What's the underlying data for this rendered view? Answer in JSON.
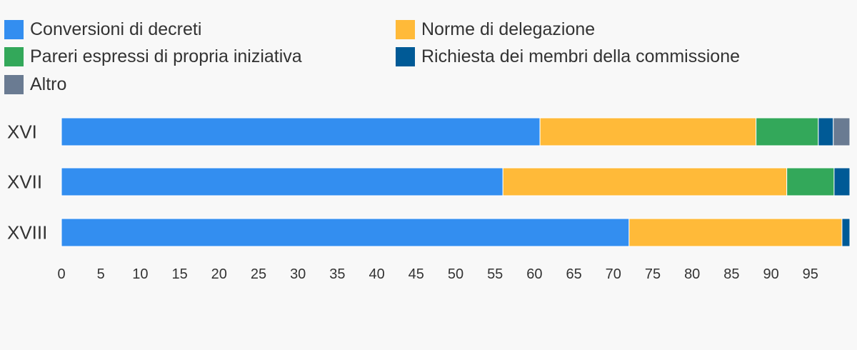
{
  "chart_data": {
    "type": "bar",
    "orientation": "horizontal",
    "stacked": true,
    "title": "",
    "xlabel": "",
    "ylabel": "",
    "categories": [
      "XVI",
      "XVII",
      "XVIII"
    ],
    "series": [
      {
        "name": "Conversioni di decreti",
        "color": "#338ef0",
        "values": [
          60.7,
          56.0,
          72.0
        ]
      },
      {
        "name": "Norme di delegazione",
        "color": "#ffba39",
        "values": [
          27.4,
          36.0,
          27.0
        ]
      },
      {
        "name": "Pareri espressi di propria iniziativa",
        "color": "#33a85a",
        "values": [
          7.9,
          6.0,
          0
        ]
      },
      {
        "name": "Richiesta dei membri della commissione",
        "color": "#005a96",
        "values": [
          1.9,
          2.0,
          1.0
        ]
      },
      {
        "name": "Altro",
        "color": "#6a7b92",
        "values": [
          2.1,
          0,
          0
        ]
      }
    ],
    "xlim": [
      0,
      100
    ],
    "xticks": [
      "0",
      "5",
      "10",
      "15",
      "20",
      "25",
      "30",
      "35",
      "40",
      "45",
      "50",
      "55",
      "60",
      "65",
      "70",
      "75",
      "80",
      "85",
      "90",
      "95"
    ],
    "grid": false,
    "legend_position": "top"
  }
}
